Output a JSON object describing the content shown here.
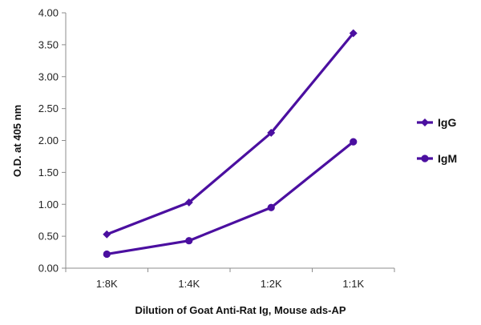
{
  "chart_data": {
    "type": "line",
    "title": "",
    "xlabel": "Dilution of Goat Anti-Rat Ig, Mouse ads-AP",
    "ylabel": "O.D. at 405 nm",
    "categories": [
      "1:8K",
      "1:4K",
      "1:2K",
      "1:1K"
    ],
    "ylim": [
      0,
      4
    ],
    "ytick_labels": [
      "0.00",
      "0.50",
      "1.00",
      "1.50",
      "2.00",
      "2.50",
      "3.00",
      "3.50",
      "4.00"
    ],
    "grid": "none",
    "legend_position": "right",
    "series": [
      {
        "name": "IgG",
        "marker": "diamond",
        "color": "#4b0fa0",
        "values": [
          0.53,
          1.03,
          2.12,
          3.68
        ]
      },
      {
        "name": "IgM",
        "marker": "circle",
        "color": "#4b0fa0",
        "values": [
          0.22,
          0.43,
          0.95,
          1.98
        ]
      }
    ]
  }
}
